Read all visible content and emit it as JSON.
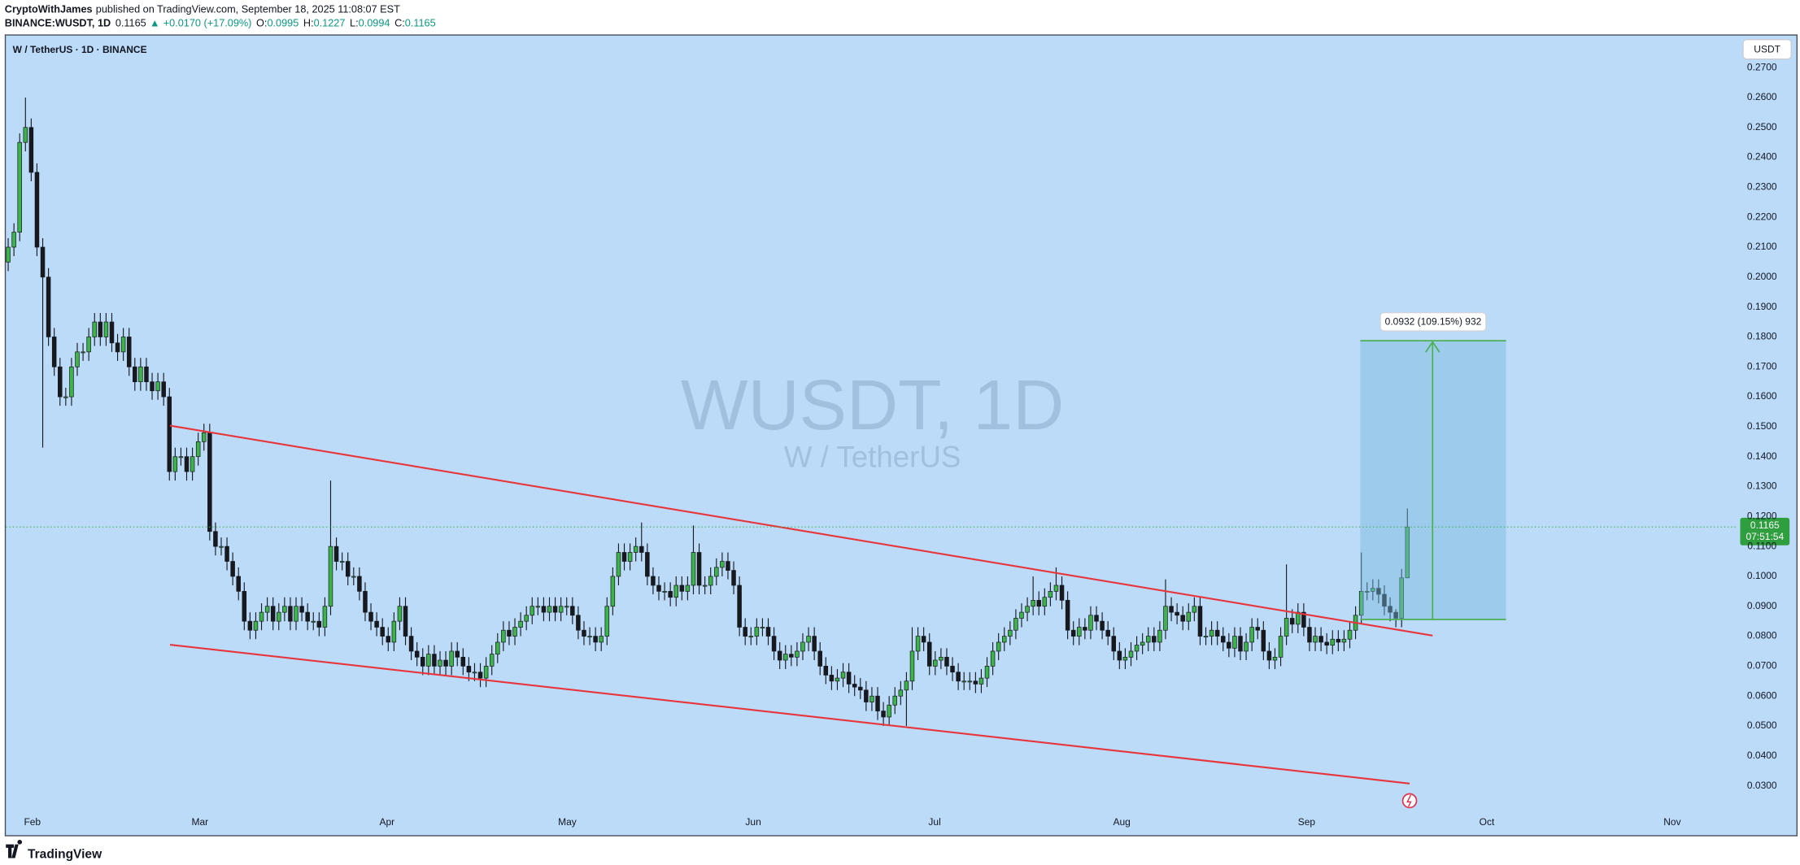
{
  "header": {
    "author": "CryptoWithJames",
    "published": "published on TradingView.com, September 18, 2025 11:08:07 EST",
    "symbol": "BINANCE:WUSDT, 1D",
    "last": "0.1165",
    "arrow": "▲",
    "change": "+0.0170 (+17.09%)",
    "o_label": "O:",
    "o": "0.0995",
    "h_label": "H:",
    "h": "0.1227",
    "l_label": "L:",
    "l": "0.0994",
    "c_label": "C:",
    "c": "0.1165"
  },
  "chart_data": {
    "type": "candlestick",
    "title": "W / TetherUS · 1D · BINANCE",
    "watermark": "WUSDT, 1D",
    "watermark_subtitle": "W / TetherUS",
    "y_axis_unit": "USDT",
    "last_price_label": "0.1165",
    "countdown": "07:51:54",
    "measure_label": "0.0932 (109.15%) 932",
    "up_color": "#3cb449",
    "down_color": "#17191f",
    "grid": false,
    "xlim": [
      -0.4,
      300
    ],
    "xticks": [
      {
        "value": 4.2,
        "label": "Feb"
      },
      {
        "value": 33.3,
        "label": "Mar"
      },
      {
        "value": 65.8,
        "label": "Apr"
      },
      {
        "value": 97.1,
        "label": "May"
      },
      {
        "value": 129.4,
        "label": "Jun"
      },
      {
        "value": 160.9,
        "label": "Jul"
      },
      {
        "value": 193.4,
        "label": "Aug"
      },
      {
        "value": 225.5,
        "label": "Sep"
      },
      {
        "value": 256.8,
        "label": "Oct"
      },
      {
        "value": 289.0,
        "label": "Nov"
      }
    ],
    "ylim": [
      0.0139,
      0.2807
    ],
    "yticks": [
      {
        "value": 0.03,
        "label": "0.0300"
      },
      {
        "value": 0.04,
        "label": "0.0400"
      },
      {
        "value": 0.05,
        "label": "0.0500"
      },
      {
        "value": 0.06,
        "label": "0.0600"
      },
      {
        "value": 0.07,
        "label": "0.0700"
      },
      {
        "value": 0.08,
        "label": "0.0800"
      },
      {
        "value": 0.09,
        "label": "0.0900"
      },
      {
        "value": 0.1,
        "label": "0.1000"
      },
      {
        "value": 0.11,
        "label": "0.1100"
      },
      {
        "value": 0.12,
        "label": "0.1200"
      },
      {
        "value": 0.13,
        "label": "0.1300"
      },
      {
        "value": 0.14,
        "label": "0.1400"
      },
      {
        "value": 0.15,
        "label": "0.1500"
      },
      {
        "value": 0.16,
        "label": "0.1600"
      },
      {
        "value": 0.17,
        "label": "0.1700"
      },
      {
        "value": 0.18,
        "label": "0.1800"
      },
      {
        "value": 0.19,
        "label": "0.1900"
      },
      {
        "value": 0.2,
        "label": "0.2000"
      },
      {
        "value": 0.21,
        "label": "0.2100"
      },
      {
        "value": 0.22,
        "label": "0.2200"
      },
      {
        "value": 0.23,
        "label": "0.2300"
      },
      {
        "value": 0.24,
        "label": "0.2400"
      },
      {
        "value": 0.25,
        "label": "0.2500"
      },
      {
        "value": 0.26,
        "label": "0.2600"
      },
      {
        "value": 0.27,
        "label": "0.2700"
      }
    ],
    "open": [
      0.205,
      0.21,
      0.215,
      0.245,
      0.25,
      0.235,
      0.21,
      0.2,
      0.18,
      0.17,
      0.16,
      0.16,
      0.17,
      0.175,
      0.175,
      0.18,
      0.185,
      0.18,
      0.185,
      0.178,
      0.175,
      0.18,
      0.17,
      0.165,
      0.17,
      0.165,
      0.162,
      0.165,
      0.16,
      0.135,
      0.14,
      0.14,
      0.135,
      0.14,
      0.145,
      0.148,
      0.115,
      0.11,
      0.11,
      0.105,
      0.1,
      0.095,
      0.085,
      0.082,
      0.085,
      0.088,
      0.09,
      0.085,
      0.088,
      0.09,
      0.085,
      0.09,
      0.088,
      0.085,
      0.085,
      0.083,
      0.09,
      0.11,
      0.105,
      0.105,
      0.1,
      0.1,
      0.095,
      0.088,
      0.085,
      0.083,
      0.08,
      0.078,
      0.085,
      0.09,
      0.08,
      0.075,
      0.073,
      0.07,
      0.074,
      0.07,
      0.072,
      0.07,
      0.075,
      0.073,
      0.07,
      0.068,
      0.068,
      0.066,
      0.07,
      0.074,
      0.078,
      0.082,
      0.08,
      0.083,
      0.085,
      0.087,
      0.09,
      0.09,
      0.088,
      0.09,
      0.088,
      0.09,
      0.09,
      0.087,
      0.082,
      0.08,
      0.08,
      0.078,
      0.08,
      0.09,
      0.1,
      0.108,
      0.105,
      0.108,
      0.11,
      0.108,
      0.1,
      0.097,
      0.095,
      0.095,
      0.093,
      0.097,
      0.095,
      0.097,
      0.108,
      0.097,
      0.097,
      0.1,
      0.103,
      0.105,
      0.102,
      0.097,
      0.083,
      0.08,
      0.08,
      0.083,
      0.083,
      0.08,
      0.075,
      0.072,
      0.074,
      0.073,
      0.075,
      0.078,
      0.08,
      0.075,
      0.07,
      0.067,
      0.065,
      0.066,
      0.068,
      0.064,
      0.063,
      0.062,
      0.058,
      0.06,
      0.055,
      0.053,
      0.057,
      0.06,
      0.062,
      0.065,
      0.075,
      0.08,
      0.078,
      0.07,
      0.072,
      0.073,
      0.07,
      0.068,
      0.065,
      0.065,
      0.065,
      0.064,
      0.066,
      0.07,
      0.075,
      0.078,
      0.08,
      0.082,
      0.086,
      0.088,
      0.09,
      0.092,
      0.09,
      0.093,
      0.095,
      0.097,
      0.092,
      0.082,
      0.08,
      0.083,
      0.082,
      0.087,
      0.085,
      0.082,
      0.08,
      0.075,
      0.072,
      0.073,
      0.075,
      0.077,
      0.078,
      0.08,
      0.078,
      0.082,
      0.09,
      0.088,
      0.087,
      0.085,
      0.088,
      0.09,
      0.08,
      0.08,
      0.082,
      0.08,
      0.078,
      0.076,
      0.08,
      0.075,
      0.078,
      0.083,
      0.082,
      0.075,
      0.072,
      0.073,
      0.08,
      0.086,
      0.084,
      0.088,
      0.083,
      0.078,
      0.08,
      0.078,
      0.077,
      0.079,
      0.078,
      0.079,
      0.082,
      0.087,
      0.095,
      0.095,
      0.096,
      0.094,
      0.09,
      0.088,
      0.086,
      0.0995
    ],
    "high": [
      0.213,
      0.218,
      0.248,
      0.26,
      0.253,
      0.238,
      0.213,
      0.203,
      0.183,
      0.173,
      0.163,
      0.173,
      0.178,
      0.178,
      0.183,
      0.188,
      0.188,
      0.188,
      0.188,
      0.181,
      0.183,
      0.183,
      0.173,
      0.173,
      0.173,
      0.168,
      0.168,
      0.168,
      0.163,
      0.143,
      0.143,
      0.143,
      0.143,
      0.148,
      0.151,
      0.151,
      0.118,
      0.113,
      0.113,
      0.108,
      0.103,
      0.098,
      0.088,
      0.088,
      0.091,
      0.093,
      0.093,
      0.091,
      0.093,
      0.093,
      0.093,
      0.093,
      0.091,
      0.088,
      0.088,
      0.093,
      0.132,
      0.113,
      0.108,
      0.108,
      0.103,
      0.103,
      0.098,
      0.091,
      0.088,
      0.086,
      0.083,
      0.088,
      0.093,
      0.093,
      0.083,
      0.078,
      0.076,
      0.077,
      0.077,
      0.075,
      0.075,
      0.078,
      0.078,
      0.076,
      0.073,
      0.071,
      0.071,
      0.073,
      0.077,
      0.081,
      0.085,
      0.085,
      0.086,
      0.088,
      0.09,
      0.093,
      0.093,
      0.093,
      0.093,
      0.093,
      0.093,
      0.093,
      0.093,
      0.09,
      0.085,
      0.083,
      0.083,
      0.083,
      0.093,
      0.103,
      0.111,
      0.111,
      0.111,
      0.113,
      0.118,
      0.111,
      0.103,
      0.1,
      0.098,
      0.098,
      0.1,
      0.1,
      0.1,
      0.117,
      0.111,
      0.1,
      0.103,
      0.106,
      0.108,
      0.108,
      0.105,
      0.1,
      0.086,
      0.083,
      0.086,
      0.086,
      0.086,
      0.083,
      0.078,
      0.077,
      0.077,
      0.078,
      0.081,
      0.083,
      0.083,
      0.078,
      0.073,
      0.07,
      0.069,
      0.071,
      0.071,
      0.067,
      0.066,
      0.065,
      0.063,
      0.063,
      0.058,
      0.06,
      0.063,
      0.065,
      0.068,
      0.083,
      0.083,
      0.083,
      0.081,
      0.075,
      0.076,
      0.076,
      0.073,
      0.071,
      0.068,
      0.068,
      0.068,
      0.069,
      0.073,
      0.078,
      0.081,
      0.083,
      0.085,
      0.089,
      0.091,
      0.093,
      0.1,
      0.095,
      0.096,
      0.098,
      0.103,
      0.1,
      0.095,
      0.085,
      0.086,
      0.086,
      0.09,
      0.09,
      0.088,
      0.085,
      0.083,
      0.078,
      0.076,
      0.078,
      0.08,
      0.081,
      0.083,
      0.083,
      0.085,
      0.099,
      0.093,
      0.091,
      0.09,
      0.091,
      0.093,
      0.093,
      0.083,
      0.085,
      0.085,
      0.083,
      0.081,
      0.083,
      0.083,
      0.081,
      0.086,
      0.086,
      0.085,
      0.078,
      0.076,
      0.083,
      0.104,
      0.089,
      0.091,
      0.091,
      0.086,
      0.083,
      0.083,
      0.081,
      0.082,
      0.082,
      0.082,
      0.085,
      0.09,
      0.108,
      0.098,
      0.099,
      0.099,
      0.097,
      0.093,
      0.089,
      0.1025,
      0.1227
    ],
    "low": [
      0.202,
      0.207,
      0.212,
      0.242,
      0.232,
      0.207,
      0.143,
      0.177,
      0.167,
      0.157,
      0.157,
      0.157,
      0.167,
      0.172,
      0.172,
      0.177,
      0.177,
      0.177,
      0.175,
      0.172,
      0.172,
      0.167,
      0.162,
      0.162,
      0.162,
      0.159,
      0.159,
      0.157,
      0.132,
      0.132,
      0.137,
      0.132,
      0.132,
      0.137,
      0.142,
      0.112,
      0.107,
      0.107,
      0.102,
      0.097,
      0.092,
      0.082,
      0.079,
      0.079,
      0.082,
      0.085,
      0.082,
      0.082,
      0.085,
      0.082,
      0.082,
      0.085,
      0.082,
      0.082,
      0.08,
      0.08,
      0.087,
      0.102,
      0.102,
      0.097,
      0.097,
      0.092,
      0.085,
      0.082,
      0.08,
      0.077,
      0.075,
      0.075,
      0.082,
      0.077,
      0.072,
      0.07,
      0.067,
      0.067,
      0.067,
      0.067,
      0.067,
      0.067,
      0.07,
      0.067,
      0.065,
      0.065,
      0.063,
      0.063,
      0.067,
      0.071,
      0.075,
      0.077,
      0.077,
      0.08,
      0.082,
      0.084,
      0.087,
      0.085,
      0.085,
      0.085,
      0.085,
      0.087,
      0.084,
      0.079,
      0.077,
      0.077,
      0.075,
      0.075,
      0.077,
      0.087,
      0.097,
      0.102,
      0.102,
      0.105,
      0.105,
      0.097,
      0.094,
      0.092,
      0.092,
      0.09,
      0.09,
      0.092,
      0.092,
      0.094,
      0.094,
      0.094,
      0.094,
      0.097,
      0.1,
      0.099,
      0.094,
      0.08,
      0.077,
      0.077,
      0.077,
      0.08,
      0.077,
      0.072,
      0.069,
      0.069,
      0.07,
      0.07,
      0.072,
      0.075,
      0.072,
      0.067,
      0.064,
      0.062,
      0.062,
      0.063,
      0.061,
      0.06,
      0.059,
      0.055,
      0.055,
      0.052,
      0.05,
      0.05,
      0.054,
      0.057,
      0.05,
      0.062,
      0.072,
      0.075,
      0.067,
      0.067,
      0.069,
      0.067,
      0.065,
      0.062,
      0.062,
      0.062,
      0.061,
      0.061,
      0.063,
      0.067,
      0.072,
      0.075,
      0.077,
      0.079,
      0.083,
      0.085,
      0.087,
      0.087,
      0.087,
      0.09,
      0.092,
      0.089,
      0.079,
      0.077,
      0.077,
      0.079,
      0.079,
      0.082,
      0.079,
      0.077,
      0.072,
      0.069,
      0.069,
      0.07,
      0.072,
      0.074,
      0.075,
      0.075,
      0.075,
      0.079,
      0.085,
      0.084,
      0.082,
      0.082,
      0.085,
      0.077,
      0.077,
      0.077,
      0.077,
      0.075,
      0.073,
      0.073,
      0.072,
      0.072,
      0.075,
      0.079,
      0.072,
      0.069,
      0.069,
      0.07,
      0.077,
      0.081,
      0.081,
      0.08,
      0.075,
      0.075,
      0.075,
      0.074,
      0.074,
      0.075,
      0.075,
      0.076,
      0.079,
      0.084,
      0.092,
      0.092,
      0.091,
      0.087,
      0.085,
      0.083,
      0.083,
      0.0994
    ],
    "close": [
      0.21,
      0.215,
      0.245,
      0.25,
      0.235,
      0.21,
      0.2,
      0.18,
      0.17,
      0.16,
      0.16,
      0.17,
      0.175,
      0.175,
      0.18,
      0.185,
      0.18,
      0.185,
      0.178,
      0.175,
      0.18,
      0.17,
      0.165,
      0.17,
      0.165,
      0.162,
      0.165,
      0.16,
      0.135,
      0.14,
      0.14,
      0.135,
      0.14,
      0.145,
      0.148,
      0.115,
      0.11,
      0.11,
      0.105,
      0.1,
      0.095,
      0.085,
      0.082,
      0.085,
      0.088,
      0.09,
      0.085,
      0.088,
      0.09,
      0.085,
      0.09,
      0.088,
      0.085,
      0.085,
      0.083,
      0.09,
      0.11,
      0.105,
      0.105,
      0.1,
      0.1,
      0.095,
      0.088,
      0.085,
      0.083,
      0.08,
      0.078,
      0.085,
      0.09,
      0.08,
      0.075,
      0.073,
      0.07,
      0.074,
      0.07,
      0.072,
      0.07,
      0.075,
      0.073,
      0.07,
      0.068,
      0.068,
      0.066,
      0.07,
      0.074,
      0.078,
      0.082,
      0.08,
      0.083,
      0.085,
      0.087,
      0.09,
      0.09,
      0.088,
      0.09,
      0.088,
      0.09,
      0.09,
      0.087,
      0.082,
      0.08,
      0.08,
      0.078,
      0.08,
      0.09,
      0.1,
      0.108,
      0.105,
      0.108,
      0.11,
      0.108,
      0.1,
      0.097,
      0.095,
      0.095,
      0.093,
      0.097,
      0.095,
      0.097,
      0.108,
      0.097,
      0.097,
      0.1,
      0.103,
      0.105,
      0.102,
      0.097,
      0.083,
      0.08,
      0.08,
      0.083,
      0.083,
      0.08,
      0.075,
      0.072,
      0.074,
      0.073,
      0.075,
      0.078,
      0.08,
      0.075,
      0.07,
      0.067,
      0.065,
      0.066,
      0.068,
      0.064,
      0.063,
      0.062,
      0.058,
      0.06,
      0.055,
      0.053,
      0.057,
      0.06,
      0.062,
      0.065,
      0.075,
      0.08,
      0.078,
      0.07,
      0.072,
      0.073,
      0.07,
      0.068,
      0.065,
      0.065,
      0.065,
      0.064,
      0.066,
      0.07,
      0.075,
      0.078,
      0.08,
      0.082,
      0.086,
      0.088,
      0.09,
      0.092,
      0.09,
      0.093,
      0.095,
      0.097,
      0.092,
      0.082,
      0.08,
      0.083,
      0.082,
      0.087,
      0.085,
      0.082,
      0.08,
      0.075,
      0.072,
      0.073,
      0.075,
      0.077,
      0.078,
      0.08,
      0.078,
      0.082,
      0.09,
      0.088,
      0.087,
      0.085,
      0.088,
      0.09,
      0.08,
      0.08,
      0.082,
      0.08,
      0.078,
      0.076,
      0.08,
      0.075,
      0.078,
      0.083,
      0.082,
      0.075,
      0.072,
      0.073,
      0.08,
      0.086,
      0.084,
      0.088,
      0.083,
      0.078,
      0.08,
      0.078,
      0.077,
      0.079,
      0.078,
      0.079,
      0.082,
      0.087,
      0.095,
      0.095,
      0.096,
      0.094,
      0.09,
      0.088,
      0.086,
      0.0995,
      0.1165
    ]
  },
  "footer": {
    "brand": "TradingView"
  }
}
